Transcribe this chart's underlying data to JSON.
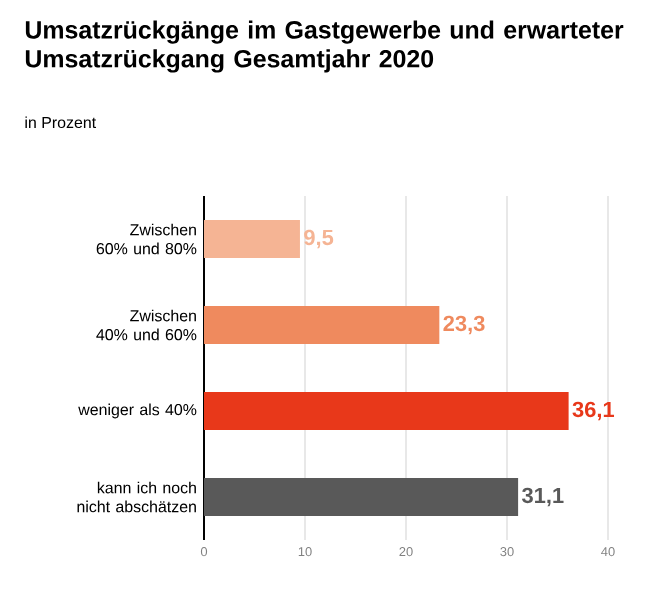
{
  "chart_data": {
    "type": "bar",
    "orientation": "horizontal",
    "title": "Umsatzrückgänge im Gastgewerbe und erwarteter Umsatzrückgang Gesamtjahr 2020",
    "subtitle": "in Prozent",
    "categories": [
      "Zwischen 60% und 80%",
      "Zwischen 40% und 60%",
      "weniger als 40%",
      "kann ich noch nicht abschätzen"
    ],
    "values": [
      9.5,
      23.3,
      36.1,
      31.1
    ],
    "colors": [
      "#f5b494",
      "#ef8a5e",
      "#e8381a",
      "#595959"
    ],
    "value_labels": [
      "9,5",
      "23,3",
      "36,1",
      "31,1"
    ],
    "xlim": [
      0,
      40
    ],
    "xticks": [
      0,
      10,
      20,
      30,
      40
    ],
    "grid": "x"
  }
}
